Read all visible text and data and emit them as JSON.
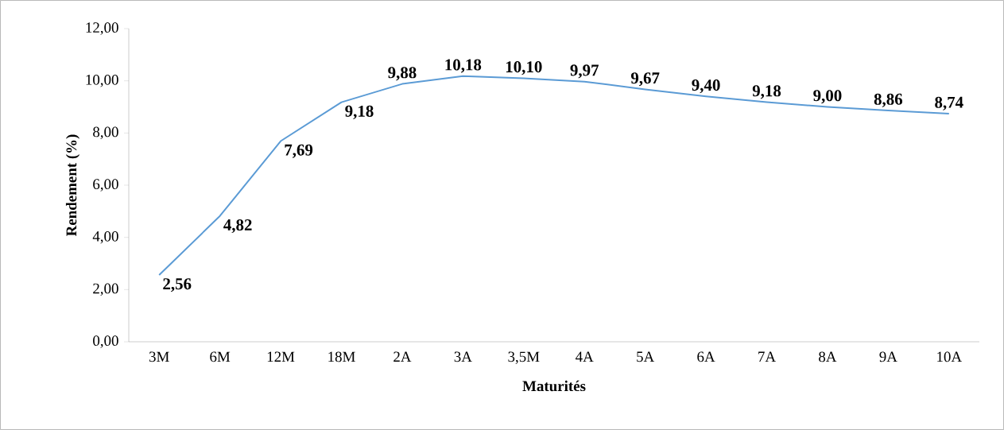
{
  "chart_data": {
    "type": "line",
    "xlabel": "Maturités",
    "ylabel": "Rendement (%)",
    "categories": [
      "3M",
      "6M",
      "12M",
      "18M",
      "2A",
      "3A",
      "3,5M",
      "4A",
      "5A",
      "6A",
      "7A",
      "8A",
      "9A",
      "10A"
    ],
    "values": [
      2.56,
      4.82,
      7.69,
      9.18,
      9.88,
      10.18,
      10.1,
      9.97,
      9.67,
      9.4,
      9.18,
      9.0,
      8.86,
      8.74
    ],
    "value_labels": [
      "2,56",
      "4,82",
      "7,69",
      "9,18",
      "9,88",
      "10,18",
      "10,10",
      "9,97",
      "9,67",
      "9,40",
      "9,18",
      "9,00",
      "8,86",
      "8,74"
    ],
    "color": "#5b9bd5",
    "marker": "none",
    "line_style": "solid",
    "grid": false,
    "ylim": [
      0,
      12
    ],
    "yticks": [
      {
        "value": 0,
        "label": "0,00"
      },
      {
        "value": 2,
        "label": "2,00"
      },
      {
        "value": 4,
        "label": "4,00"
      },
      {
        "value": 6,
        "label": "6,00"
      },
      {
        "value": 8,
        "label": "8,00"
      },
      {
        "value": 10,
        "label": "10,00"
      },
      {
        "value": 12,
        "label": "12,00"
      }
    ]
  }
}
